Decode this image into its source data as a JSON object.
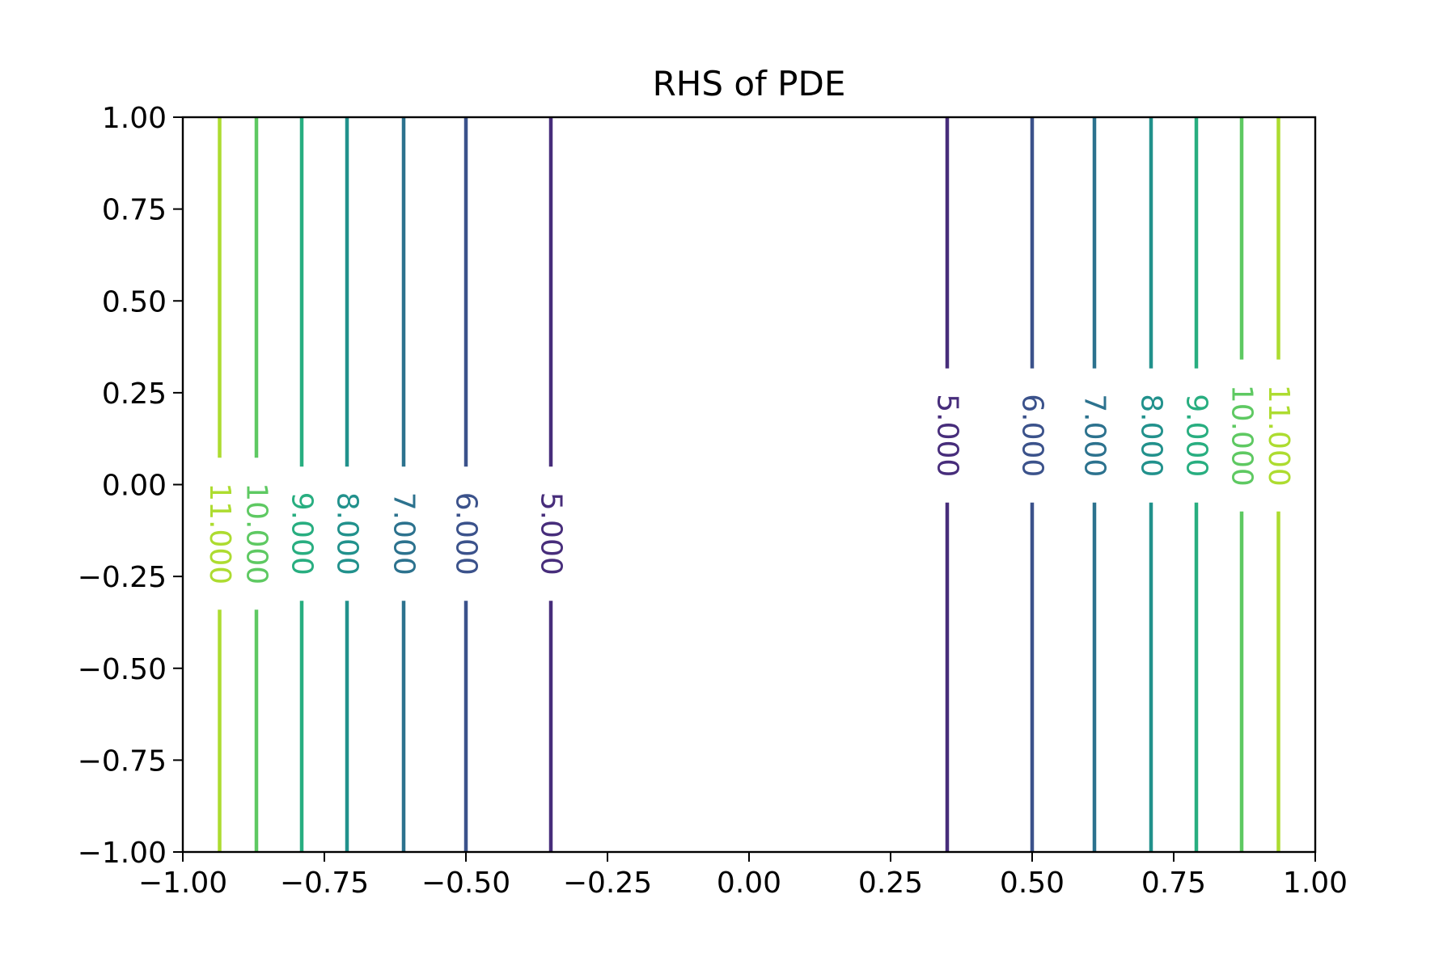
{
  "chart_data": {
    "type": "contour",
    "title": "RHS of PDE",
    "xlabel": "",
    "ylabel": "",
    "xlim": [
      -1.0,
      1.0
    ],
    "ylim": [
      -1.0,
      1.0
    ],
    "x_ticks": [
      "−1.00",
      "−0.75",
      "−0.50",
      "−0.25",
      "0.00",
      "0.25",
      "0.50",
      "0.75",
      "1.00"
    ],
    "x_tick_values": [
      -1.0,
      -0.75,
      -0.5,
      -0.25,
      0.0,
      0.25,
      0.5,
      0.75,
      1.0
    ],
    "y_ticks": [
      "−1.00",
      "−0.75",
      "−0.50",
      "−0.25",
      "0.00",
      "0.25",
      "0.50",
      "0.75",
      "1.00"
    ],
    "y_tick_values": [
      -1.0,
      -0.75,
      -0.5,
      -0.25,
      0.0,
      0.25,
      0.5,
      0.75,
      1.0
    ],
    "grid": false,
    "colormap": "viridis",
    "levels": [
      {
        "label": "5.000",
        "value": 5,
        "color": "#472d7b",
        "x": [
          -0.35,
          0.35
        ],
        "label_y": [
          -0.05,
          0.05
        ]
      },
      {
        "label": "6.000",
        "value": 6,
        "color": "#3b528b",
        "x": [
          -0.5,
          0.5
        ],
        "label_y": [
          -0.05,
          0.05
        ]
      },
      {
        "label": "7.000",
        "value": 7,
        "color": "#2c728e",
        "x": [
          -0.61,
          0.61
        ],
        "label_y": [
          -0.05,
          0.05
        ]
      },
      {
        "label": "8.000",
        "value": 8,
        "color": "#21918c",
        "x": [
          -0.71,
          0.71
        ],
        "label_y": [
          -0.05,
          0.05
        ]
      },
      {
        "label": "9.000",
        "value": 9,
        "color": "#28ae80",
        "x": [
          -0.79,
          0.79
        ],
        "label_y": [
          -0.05,
          0.05
        ]
      },
      {
        "label": "10.000",
        "value": 10,
        "color": "#5ec962",
        "x": [
          -0.87,
          0.87
        ],
        "label_y": [
          -0.05,
          0.05
        ]
      },
      {
        "label": "11.000",
        "value": 11,
        "color": "#addc30",
        "x": [
          -0.935,
          0.935
        ],
        "label_y": [
          -0.05,
          0.05
        ]
      }
    ]
  }
}
